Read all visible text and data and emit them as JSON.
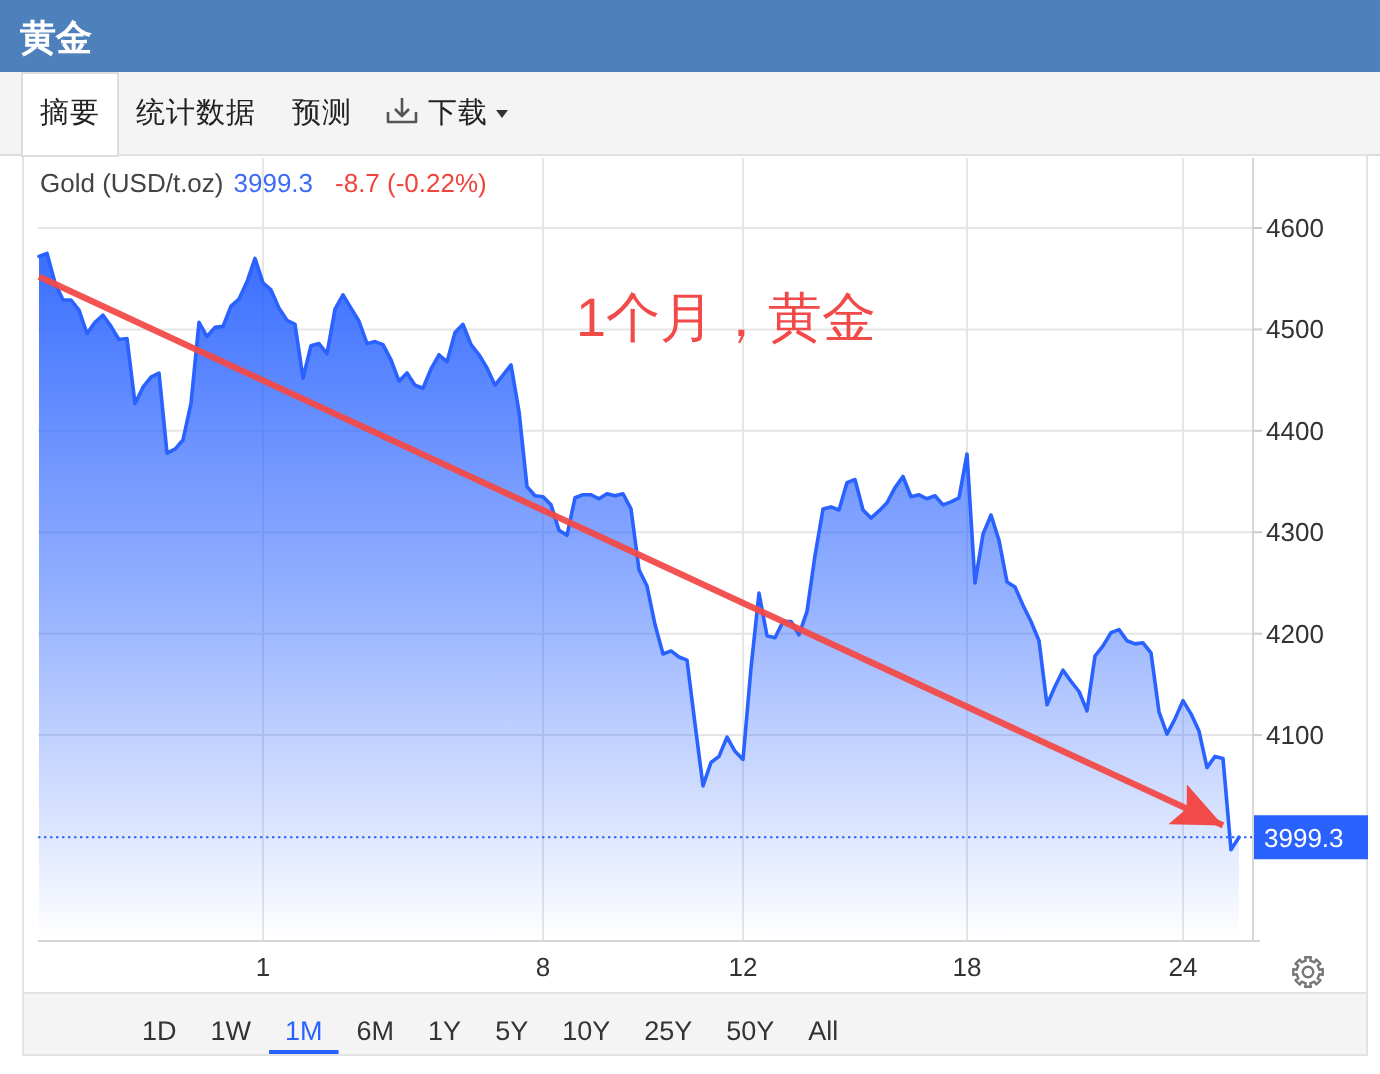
{
  "chart_data": {
    "type": "area",
    "title": "黄金",
    "subtitle": "Gold (USD/t.oz)",
    "annotations": [
      "3999.3",
      "-8.7 (-0.22%)",
      "1个月，黄金",
      "摘要",
      "统计数据",
      "预测",
      "下载",
      "1D",
      "1W",
      "1M",
      "6M",
      "1Y",
      "5Y",
      "10Y",
      "25Y",
      "50Y",
      "All"
    ],
    "categories": [
      null,
      null,
      null,
      null,
      null,
      null,
      null,
      null,
      null,
      null,
      null,
      null,
      null,
      null,
      null,
      null,
      null,
      null,
      null,
      null,
      null,
      null,
      null,
      null,
      null,
      null,
      null,
      null,
      "1",
      null,
      null,
      null,
      null,
      null,
      null,
      null,
      null,
      null,
      null,
      null,
      null,
      null,
      null,
      null,
      null,
      null,
      null,
      null,
      null,
      null,
      null,
      null,
      null,
      null,
      null,
      null,
      null,
      null,
      null,
      null,
      null,
      null,
      null,
      "8",
      null,
      null,
      null,
      null,
      null,
      null,
      null,
      null,
      null,
      null,
      null,
      null,
      null,
      null,
      null,
      null,
      null,
      null,
      null,
      null,
      null,
      null,
      null,
      null,
      "12",
      null,
      null,
      null,
      null,
      null,
      null,
      null,
      null,
      null,
      null,
      null,
      null,
      null,
      null,
      null,
      null,
      null,
      null,
      null,
      null,
      null,
      null,
      null,
      null,
      null,
      null,
      null,
      "18",
      null,
      null,
      null,
      null,
      null,
      null,
      null,
      null,
      null,
      null,
      null,
      null,
      null,
      null,
      null,
      null,
      null,
      null,
      null,
      null,
      null,
      null,
      null,
      null,
      null,
      null,
      "24",
      null,
      null,
      null,
      null,
      null,
      null,
      null
    ],
    "ylim": [
      3898,
      4669
    ],
    "yticks": [
      4100,
      4200,
      4300,
      4400,
      4500,
      4600
    ],
    "grid": true,
    "ref_lines": [
      {
        "axis": "y",
        "value": 3999.3,
        "label": "3999.3",
        "color": "#2962ff",
        "line_style": "dotted"
      }
    ],
    "series": [
      {
        "color": "#2962ff",
        "values": [
          4572,
          4575,
          4546,
          4529,
          4529,
          4519,
          4496,
          4507,
          4514,
          4503,
          4490,
          4491,
          4427,
          4443,
          4453,
          4457,
          4378,
          4382,
          4391,
          4427,
          4507,
          4493,
          4502,
          4503,
          4523,
          4530,
          4547,
          4570,
          4546,
          4539,
          4521,
          4509,
          4505,
          4452,
          4484,
          4486,
          4476,
          4520,
          4534,
          4521,
          4508,
          4486,
          4488,
          4485,
          4470,
          4449,
          4457,
          4445,
          4442,
          4461,
          4475,
          4468,
          4497,
          4505,
          4485,
          4475,
          4462,
          4445,
          4455,
          4465,
          4419,
          4345,
          4336,
          4335,
          4327,
          4302,
          4297,
          4334,
          4337,
          4337,
          4333,
          4338,
          4336,
          4338,
          4323,
          4263,
          4247,
          4209,
          4180,
          4183,
          4177,
          4174,
          4111,
          4050,
          4073,
          4079,
          4098,
          4084,
          4076,
          4166,
          4240,
          4198,
          4196,
          4212,
          4212,
          4199,
          4222,
          4277,
          4323,
          4325,
          4322,
          4349,
          4352,
          4322,
          4314,
          4321,
          4329,
          4344,
          4355,
          4335,
          4337,
          4333,
          4336,
          4327,
          4330,
          4334,
          4377,
          4250,
          4298,
          4317,
          4292,
          4251,
          4246,
          4228,
          4212,
          4193,
          4130,
          4148,
          4164,
          4153,
          4143,
          4124,
          4178,
          4188,
          4201,
          4204,
          4193,
          4190,
          4191,
          4181,
          4123,
          4101,
          4116,
          4134,
          4121,
          4104,
          4068,
          4079,
          4077,
          3987,
          3999.3
        ]
      },
      {
        "type": "line",
        "color": "#f24a48",
        "values": [
          4552,
          null,
          null,
          null,
          null,
          null,
          null,
          null,
          null,
          null,
          null,
          null,
          null,
          null,
          null,
          null,
          null,
          null,
          null,
          null,
          null,
          null,
          null,
          null,
          null,
          null,
          null,
          null,
          null,
          null,
          null,
          null,
          null,
          null,
          null,
          null,
          null,
          null,
          null,
          null,
          null,
          null,
          null,
          null,
          null,
          null,
          null,
          null,
          null,
          null,
          null,
          null,
          null,
          null,
          null,
          null,
          null,
          null,
          null,
          null,
          null,
          null,
          null,
          null,
          null,
          null,
          null,
          null,
          null,
          null,
          null,
          null,
          null,
          null,
          null,
          null,
          null,
          null,
          null,
          null,
          null,
          null,
          null,
          null,
          null,
          null,
          null,
          null,
          null,
          null,
          null,
          null,
          null,
          null,
          null,
          null,
          null,
          null,
          null,
          null,
          null,
          null,
          null,
          null,
          null,
          null,
          null,
          null,
          null,
          null,
          null,
          null,
          null,
          null,
          null,
          null,
          null,
          null,
          null,
          null,
          null,
          null,
          null,
          null,
          null,
          null,
          null,
          null,
          null,
          null,
          null,
          null,
          null,
          null,
          null,
          null,
          null,
          null,
          null,
          null,
          null,
          null,
          null,
          null,
          null,
          null,
          null,
          null,
          4011,
          null,
          null
        ]
      }
    ]
  }
}
